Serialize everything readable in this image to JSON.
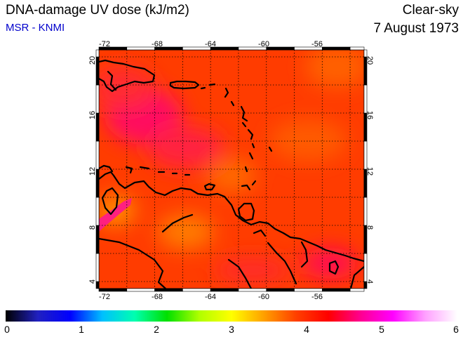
{
  "header": {
    "title": "DNA-damage UV dose (kJ/m2)",
    "subtitle": "MSR - KNMI",
    "sky_condition": "Clear-sky",
    "date": "7 August 1973"
  },
  "map": {
    "lon_range": [
      -72,
      -53
    ],
    "lat_range": [
      3.5,
      20.5
    ],
    "lon_ticks": [
      -72,
      -68,
      -64,
      -60,
      -56
    ],
    "lat_ticks": [
      4,
      8,
      12,
      16,
      20
    ],
    "field_range_kj_m2": [
      3.8,
      5.2
    ],
    "background_color": "#ff3a00",
    "coastline_color": "#000000",
    "graticule": "dotted"
  },
  "colorbar": {
    "min": 0,
    "max": 6,
    "tick_labels": [
      "0",
      "1",
      "2",
      "3",
      "4",
      "5",
      "6"
    ],
    "colors": [
      "#000000",
      "#2020c0",
      "#0000ff",
      "#00c0ff",
      "#00ffb0",
      "#00e000",
      "#b0ff00",
      "#ffff00",
      "#ffa000",
      "#ff4000",
      "#ff0000",
      "#ff0090",
      "#ff00ff",
      "#ffa0ff",
      "#ffffff"
    ]
  }
}
